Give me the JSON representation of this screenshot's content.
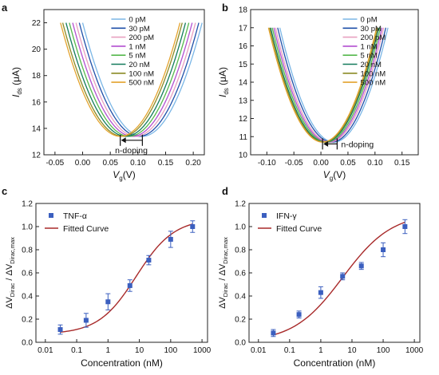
{
  "chart_data": [
    {
      "panel": "a",
      "type": "line",
      "xlabel": "V",
      "xlabel_sub": "g",
      "xlabel_unit": "(V)",
      "ylabel": "I",
      "ylabel_sub": "ds",
      "ylabel_unit": "(μA)",
      "xlim": [
        -0.07,
        0.22
      ],
      "ylim": [
        12,
        23
      ],
      "xticks": [
        -0.05,
        0.0,
        0.05,
        0.1,
        0.15,
        0.2
      ],
      "xtick_labels": [
        "-0.05",
        "0.00",
        "0.05",
        "0.10",
        "0.15",
        "0.20"
      ],
      "yticks": [
        12,
        14,
        16,
        18,
        20,
        22
      ],
      "ytick_labels": [
        "12",
        "14",
        "16",
        "18",
        "20",
        "22"
      ],
      "legend_position": "top-center",
      "annotation": "n-doping",
      "annotation_arrow": {
        "from_x": 0.108,
        "to_x": 0.068,
        "y": 13.1
      },
      "curve_min_y": 13.4,
      "curve_top_y": 22,
      "curve_half_width": 0.108,
      "series": [
        {
          "name": "0 pM",
          "color": "#7ab6e6",
          "dirac_v": 0.108
        },
        {
          "name": "30 pM",
          "color": "#1f4fa8",
          "dirac_v": 0.102
        },
        {
          "name": "200 pM",
          "color": "#e8a0c0",
          "dirac_v": 0.096
        },
        {
          "name": "1 nM",
          "color": "#b24fd1",
          "dirac_v": 0.09
        },
        {
          "name": "5 nM",
          "color": "#55b84c",
          "dirac_v": 0.084
        },
        {
          "name": "20 nM",
          "color": "#127b5c",
          "dirac_v": 0.078
        },
        {
          "name": "100 nM",
          "color": "#8a8a24",
          "dirac_v": 0.072
        },
        {
          "name": "500 nM",
          "color": "#e3a32e",
          "dirac_v": 0.068
        }
      ]
    },
    {
      "panel": "b",
      "type": "line",
      "xlabel": "V",
      "xlabel_sub": "g",
      "xlabel_unit": "(V)",
      "ylabel": "I",
      "ylabel_sub": "ds",
      "ylabel_unit": "(μA)",
      "xlim": [
        -0.13,
        0.18
      ],
      "ylim": [
        10,
        18
      ],
      "xticks": [
        -0.1,
        -0.05,
        0.0,
        0.05,
        0.1,
        0.15
      ],
      "xtick_labels": [
        "-0.10",
        "-0.05",
        "0.00",
        "0.05",
        "0.10",
        "0.15"
      ],
      "yticks": [
        10,
        11,
        12,
        13,
        14,
        15,
        16,
        17,
        18
      ],
      "ytick_labels": [
        "10",
        "11",
        "12",
        "13",
        "14",
        "15",
        "16",
        "17",
        "18"
      ],
      "legend_position": "top-right",
      "annotation": "n-doping",
      "annotation_arrow": {
        "from_x": 0.03,
        "to_x": 0.003,
        "y": 10.6
      },
      "curve_min_y": 10.7,
      "curve_top_y": 17.0,
      "curve_half_width": 0.1,
      "series": [
        {
          "name": "0 pM",
          "color": "#7ab6e6",
          "dirac_v": 0.024
        },
        {
          "name": "30 pM",
          "color": "#1f4fa8",
          "dirac_v": 0.02
        },
        {
          "name": "200 pM",
          "color": "#e8a0c0",
          "dirac_v": 0.016
        },
        {
          "name": "1 nM",
          "color": "#b24fd1",
          "dirac_v": 0.013
        },
        {
          "name": "5 nM",
          "color": "#55b84c",
          "dirac_v": 0.01
        },
        {
          "name": "20 nM",
          "color": "#127b5c",
          "dirac_v": 0.007
        },
        {
          "name": "100 nM",
          "color": "#8a8a24",
          "dirac_v": 0.005
        },
        {
          "name": "500 nM",
          "color": "#e3a32e",
          "dirac_v": 0.003
        }
      ]
    },
    {
      "panel": "c",
      "type": "scatter",
      "x_scale": "log",
      "xlabel": "Concentration (nM)",
      "ylabel_prefix": "ΔV",
      "ylabel_sub1": "Dirac",
      "ylabel_mid": " / ΔV",
      "ylabel_sub2": "Dirac,max",
      "xlim": [
        0.005,
        1500
      ],
      "ylim": [
        0.0,
        1.2
      ],
      "xticks": [
        0.01,
        0.1,
        1,
        10,
        100,
        1000
      ],
      "xtick_labels": [
        "0.01",
        "0.1",
        "1",
        "10",
        "100",
        "1000"
      ],
      "yticks": [
        0.0,
        0.2,
        0.4,
        0.6,
        0.8,
        1.0,
        1.2
      ],
      "ytick_labels": [
        "0.0",
        "0.2",
        "0.4",
        "0.6",
        "0.8",
        "1.0",
        "1.2"
      ],
      "legend_position": "top-left",
      "series": [
        {
          "name": "TNF-α",
          "marker_color": "#3b5fbf",
          "x": [
            0.03,
            0.2,
            1,
            5,
            20,
            100,
            500
          ],
          "y": [
            0.11,
            0.19,
            0.35,
            0.49,
            0.71,
            0.89,
            1.0
          ],
          "err": [
            0.04,
            0.06,
            0.07,
            0.05,
            0.04,
            0.07,
            0.05
          ]
        },
        {
          "name": "Fitted Curve",
          "line_color": "#a82a2a",
          "fit": {
            "bottom": 0.07,
            "top": 1.07,
            "log_ec50": 0.9,
            "hill": 0.72
          }
        }
      ]
    },
    {
      "panel": "d",
      "type": "scatter",
      "x_scale": "log",
      "xlabel": "Concentration (nM)",
      "ylabel_prefix": "ΔV",
      "ylabel_sub1": "Dirac",
      "ylabel_mid": " / ΔV",
      "ylabel_sub2": "Dirac,max",
      "xlim": [
        0.005,
        1500
      ],
      "ylim": [
        0.0,
        1.2
      ],
      "xticks": [
        0.01,
        0.1,
        1,
        10,
        100,
        1000
      ],
      "xtick_labels": [
        "0.01",
        "0.1",
        "1",
        "10",
        "100",
        "1000"
      ],
      "yticks": [
        0.0,
        0.2,
        0.4,
        0.6,
        0.8,
        1.0,
        1.2
      ],
      "ytick_labels": [
        "0.0",
        "0.2",
        "0.4",
        "0.6",
        "0.8",
        "1.0",
        "1.2"
      ],
      "legend_position": "top-left",
      "series": [
        {
          "name": "IFN-γ",
          "marker_color": "#3b5fbf",
          "x": [
            0.03,
            0.2,
            1,
            5,
            20,
            100,
            500
          ],
          "y": [
            0.08,
            0.24,
            0.43,
            0.57,
            0.66,
            0.8,
            1.0
          ],
          "err": [
            0.03,
            0.03,
            0.05,
            0.03,
            0.03,
            0.06,
            0.06
          ]
        },
        {
          "name": "Fitted Curve",
          "line_color": "#a82a2a",
          "fit": {
            "bottom": 0.0,
            "top": 1.12,
            "log_ec50": 0.7,
            "hill": 0.55
          }
        }
      ]
    }
  ],
  "panel_labels": [
    "a",
    "b",
    "c",
    "d"
  ]
}
